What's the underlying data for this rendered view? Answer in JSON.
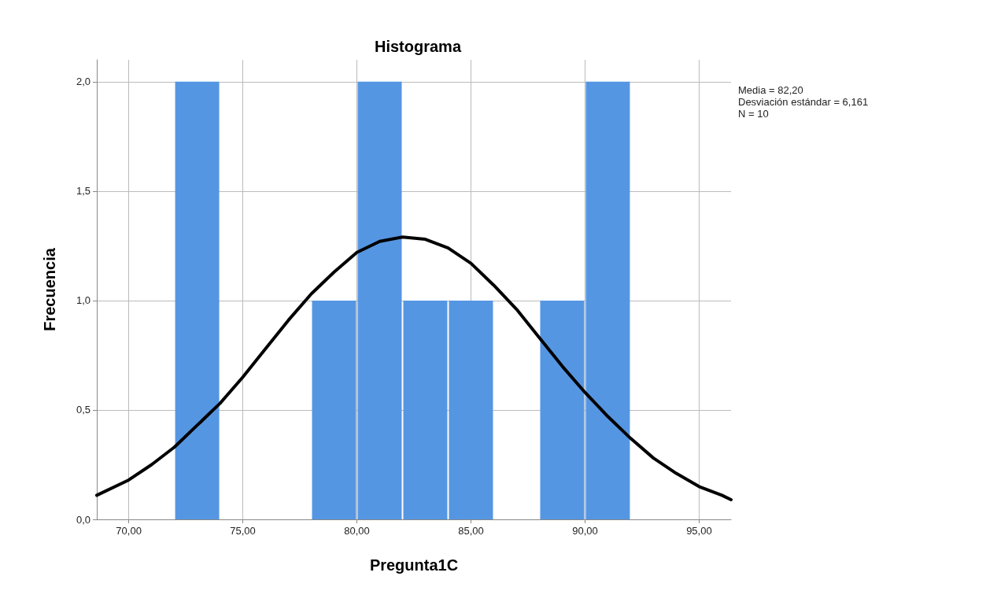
{
  "chart_data": {
    "type": "histogram",
    "title": "Histograma",
    "xlabel": "Pregunta1C",
    "ylabel": "Frecuencia",
    "bins": [
      72,
      74,
      76,
      78,
      80,
      82,
      84,
      86,
      88,
      90,
      92
    ],
    "values": [
      2,
      0,
      0,
      1,
      2,
      1,
      1,
      0,
      1,
      2
    ],
    "color": "#5596e3",
    "series": [
      {
        "type": "line",
        "color": "#000000",
        "x": [
          68.6,
          70,
          71,
          72,
          73,
          74,
          75,
          76,
          77,
          78,
          79,
          80,
          81,
          82,
          83,
          84,
          85,
          86,
          87,
          88,
          89,
          90,
          91,
          92,
          93,
          94,
          95,
          96,
          96.4
        ],
        "values": [
          0.11,
          0.18,
          0.25,
          0.33,
          0.43,
          0.53,
          0.65,
          0.78,
          0.91,
          1.03,
          1.13,
          1.22,
          1.27,
          1.29,
          1.28,
          1.24,
          1.17,
          1.07,
          0.96,
          0.83,
          0.7,
          0.58,
          0.47,
          0.37,
          0.28,
          0.21,
          0.15,
          0.11,
          0.09
        ]
      }
    ],
    "xlim": [
      68.6,
      96.4
    ],
    "xticks": [
      {
        "value": 70,
        "label": "70,00"
      },
      {
        "value": 75,
        "label": "75,00"
      },
      {
        "value": 80,
        "label": "80,00"
      },
      {
        "value": 85,
        "label": "85,00"
      },
      {
        "value": 90,
        "label": "90,00"
      },
      {
        "value": 95,
        "label": "95,00"
      }
    ],
    "ylim": [
      0,
      2.1
    ],
    "yticks": [
      {
        "value": 0,
        "label": "0,0"
      },
      {
        "value": 0.5,
        "label": "0,5"
      },
      {
        "value": 1,
        "label": "1,0"
      },
      {
        "value": 1.5,
        "label": "1,5"
      },
      {
        "value": 2,
        "label": "2,0"
      }
    ],
    "grid": true,
    "marker": "none",
    "annotations": [
      "Media = 82,20",
      "Desviación estándar = 6,161",
      "N = 10"
    ]
  }
}
